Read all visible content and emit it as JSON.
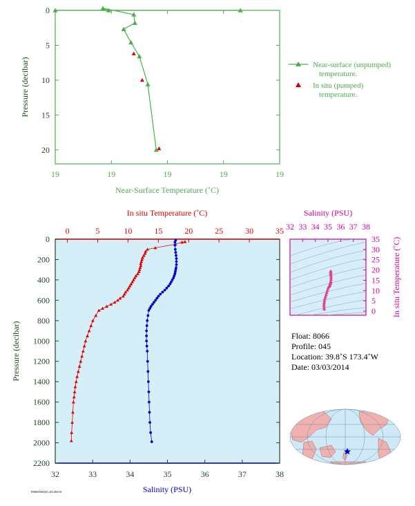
{
  "colors": {
    "green": "#4cae4c",
    "red": "#e00000",
    "blue": "#0000cc",
    "magenta": "#d000a0",
    "pink": "#e0408a",
    "panel_bg": "#d6eef8",
    "axis_dark": "#224422",
    "land": "#f0b0b0",
    "ocean": "#cfe9f7"
  },
  "chart_data": [
    {
      "type": "line",
      "panel": "near-surface",
      "xlabel": "Near-Surface Temperature (˚C)",
      "ylabel": "Pressure (decibar)",
      "xticks": [
        "19",
        "19",
        "19",
        "19",
        "19"
      ],
      "yticks": [
        "0",
        "5",
        "10",
        "15",
        "20"
      ],
      "ylim": [
        0,
        22
      ],
      "xlim": [
        0,
        4
      ],
      "legend_position": "right",
      "series": [
        {
          "name": "Near-surface (unpumped) temperature.",
          "marker": "triangle-line",
          "x": [
            0.0,
            3.3,
            0.95,
            0.85,
            1.4,
            1.42,
            1.22,
            1.35,
            1.5,
            1.65,
            1.8
          ],
          "y": [
            0.0,
            0.0,
            0.0,
            -0.3,
            0.6,
            1.8,
            2.7,
            4.6,
            6.6,
            10.6,
            20.0
          ]
        },
        {
          "name": "In situ (pumped) temperature.",
          "marker": "triangle",
          "x": [
            1.4,
            1.55,
            1.85
          ],
          "y": [
            6.2,
            10.0,
            19.8
          ]
        }
      ]
    },
    {
      "type": "line",
      "panel": "profile",
      "ylabel": "Pressure (decibar)",
      "ylim": [
        0,
        2200
      ],
      "yticks": [
        "0",
        "200",
        "400",
        "600",
        "800",
        "1000",
        "1200",
        "1400",
        "1600",
        "1800",
        "2000",
        "2200"
      ],
      "temperature_axis": {
        "label": "In situ Temperature (˚C)",
        "xlim": [
          -2,
          35
        ],
        "ticks": [
          "0",
          "5",
          "10",
          "15",
          "20",
          "25",
          "30",
          "35"
        ]
      },
      "salinity_axis": {
        "label": "Salinity (PSU)",
        "xlim": [
          32,
          38
        ],
        "ticks": [
          "32",
          "33",
          "34",
          "35",
          "36",
          "37",
          "38"
        ]
      },
      "series": [
        {
          "name": "temperature",
          "marker": "triangle",
          "x": [
            19.4,
            18.9,
            17.8,
            14.5,
            13.2,
            12.9,
            12.8,
            12.6,
            12.4,
            12.3,
            12.2,
            12.1,
            12.1,
            12.0,
            11.9,
            11.8,
            11.6,
            11.3,
            11.1,
            10.9,
            10.7,
            10.5,
            10.3,
            10.1,
            9.9,
            9.6,
            9.4,
            9.2,
            8.7,
            8.3,
            7.8,
            7.2,
            6.5,
            5.8,
            5.2,
            4.7,
            4.2,
            3.9,
            3.6,
            3.3,
            3.0,
            2.8,
            2.6,
            2.4,
            2.2,
            2.0,
            1.8,
            1.6,
            1.45,
            1.3,
            1.2,
            1.1,
            1.0,
            0.9,
            0.8,
            0.7,
            0.65
          ],
          "y": [
            25,
            30,
            50,
            85,
            100,
            120,
            140,
            160,
            180,
            200,
            220,
            240,
            260,
            280,
            300,
            320,
            340,
            360,
            380,
            400,
            420,
            440,
            460,
            480,
            500,
            520,
            540,
            560,
            580,
            600,
            620,
            640,
            660,
            680,
            700,
            750,
            800,
            850,
            900,
            950,
            1000,
            1050,
            1100,
            1150,
            1200,
            1250,
            1300,
            1350,
            1400,
            1450,
            1500,
            1550,
            1600,
            1700,
            1800,
            1900,
            1980
          ]
        },
        {
          "name": "salinity",
          "marker": "dot",
          "x": [
            35.22,
            35.2,
            35.2,
            35.21,
            35.22,
            35.23,
            35.24,
            35.24,
            35.24,
            35.23,
            35.22,
            35.21,
            35.2,
            35.18,
            35.16,
            35.13,
            35.1,
            35.07,
            35.03,
            34.98,
            34.93,
            34.87,
            34.81,
            34.76,
            34.72,
            34.68,
            34.64,
            34.6,
            34.56,
            34.53,
            34.5,
            34.48,
            34.46,
            34.45,
            34.44,
            34.44,
            34.44,
            34.45,
            34.46,
            34.47,
            34.48,
            34.49,
            34.5,
            34.51,
            34.52,
            34.53,
            34.55,
            34.58
          ],
          "y": [
            10,
            30,
            60,
            100,
            130,
            160,
            190,
            220,
            250,
            280,
            300,
            320,
            340,
            360,
            380,
            400,
            420,
            440,
            460,
            480,
            500,
            520,
            540,
            560,
            580,
            600,
            620,
            640,
            660,
            680,
            700,
            750,
            800,
            850,
            900,
            950,
            1000,
            1050,
            1100,
            1200,
            1300,
            1400,
            1500,
            1600,
            1700,
            1800,
            1900,
            1990
          ]
        }
      ]
    },
    {
      "type": "scatter",
      "panel": "ts-diagram",
      "title": "Salinity (PSU)",
      "ylabel": "In situ Temperature (˚C)",
      "xticks": [
        "32",
        "33",
        "34",
        "35",
        "36",
        "37",
        "38"
      ],
      "yticks": [
        "0",
        "5",
        "10",
        "15",
        "20",
        "25",
        "30",
        "35"
      ],
      "xlim": [
        32,
        38
      ],
      "ylim": [
        -2,
        35
      ],
      "series": [
        {
          "name": "ts-points",
          "x": [
            34.7,
            34.69,
            34.68,
            34.7,
            34.72,
            34.75,
            34.8,
            34.85,
            34.9,
            34.95,
            35.0,
            35.05,
            35.1,
            35.13,
            35.16,
            35.18,
            35.2,
            35.22,
            35.24,
            35.24,
            35.23,
            35.22,
            35.21,
            35.22
          ],
          "y": [
            1.0,
            2.0,
            3.0,
            4.0,
            5.0,
            6.0,
            7.0,
            8.0,
            9.0,
            10.0,
            11.0,
            11.8,
            12.2,
            12.6,
            13.0,
            13.5,
            14.0,
            14.5,
            15.5,
            16.5,
            17.5,
            18.2,
            19.0,
            19.5
          ]
        }
      ]
    }
  ],
  "float_info": {
    "float": "Float: 8066",
    "profile": "Profile: 045",
    "location": "Location: 39.8˚S 173.4˚W",
    "date": "Date: 03/03/2014"
  },
  "footer_code": "P8066NK045 20140318"
}
